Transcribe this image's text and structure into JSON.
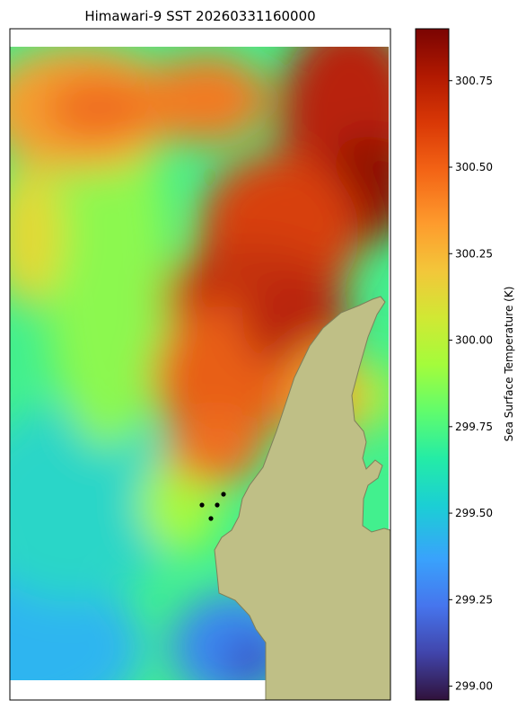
{
  "chart_data": {
    "type": "heatmap",
    "title": "Himawari-9 SST 20260331160000",
    "colorbar": {
      "label": "Sea Surface Temperature (K)",
      "range": [
        298.96,
        300.9
      ],
      "ticks": [
        "299.00",
        "299.25",
        "299.50",
        "299.75",
        "300.00",
        "300.25",
        "300.50",
        "300.75"
      ],
      "tick_values": [
        299.0,
        299.25,
        299.5,
        299.75,
        300.0,
        300.25,
        300.5,
        300.75
      ],
      "colormap": "turbo"
    },
    "grid": false,
    "legend": "none",
    "land_color": "#bfbf86",
    "coast_color": "#7f7f5a",
    "markers": {
      "count": 4,
      "color": "#000000"
    }
  }
}
